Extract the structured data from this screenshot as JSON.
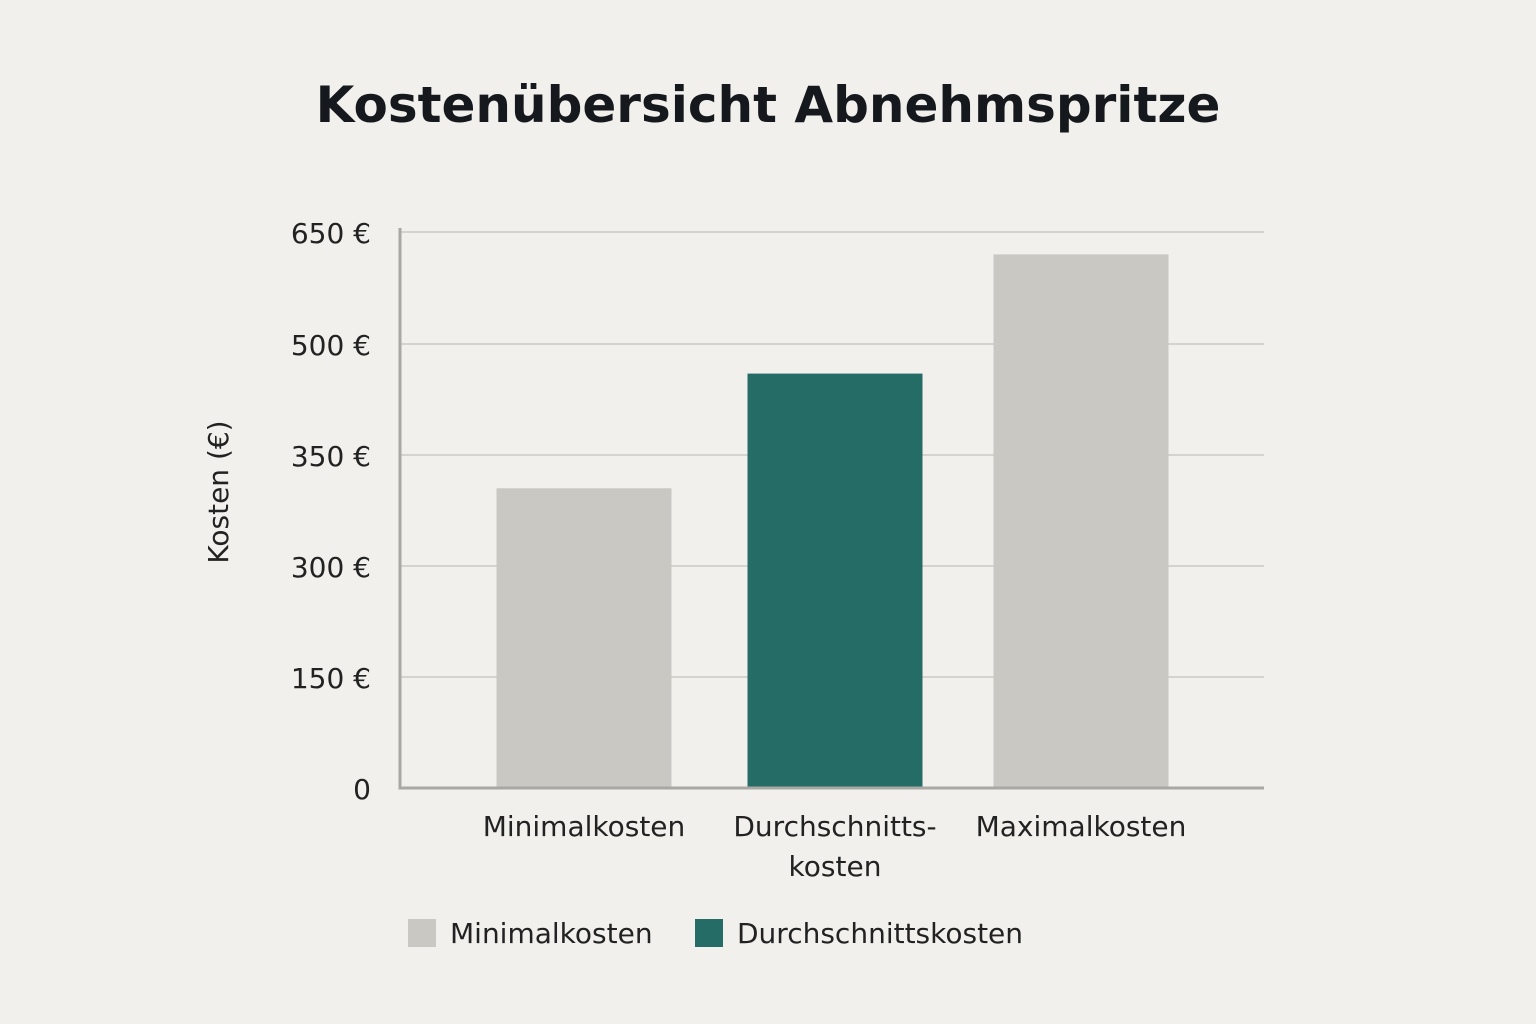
{
  "chart_data": {
    "type": "bar",
    "title": "Kostenübersicht Abnehmspritze",
    "ylabel": "Kosten (€)",
    "xlabel": "",
    "y_tick_labels": [
      "0",
      "150 €",
      "300 €",
      "350 €",
      "500 €",
      "650 €"
    ],
    "categories": [
      "Minimalkosten",
      "Durchschnitts-kosten",
      "Maximalkosten"
    ],
    "category_label_lines": [
      [
        "Minimalkosten"
      ],
      [
        "Durchschnitts-",
        "kosten"
      ],
      [
        "Maximalkosten"
      ]
    ],
    "values": [
      335,
      460,
      620
    ],
    "bar_colors": [
      "#c9c8c3",
      "#256b66",
      "#c9c8c3"
    ],
    "grid": true,
    "legend": {
      "position": "bottom",
      "entries": [
        {
          "label": "Minimalkosten",
          "color": "#c9c8c3"
        },
        {
          "label": "Durchschnittskosten",
          "color": "#256b66"
        }
      ]
    }
  }
}
